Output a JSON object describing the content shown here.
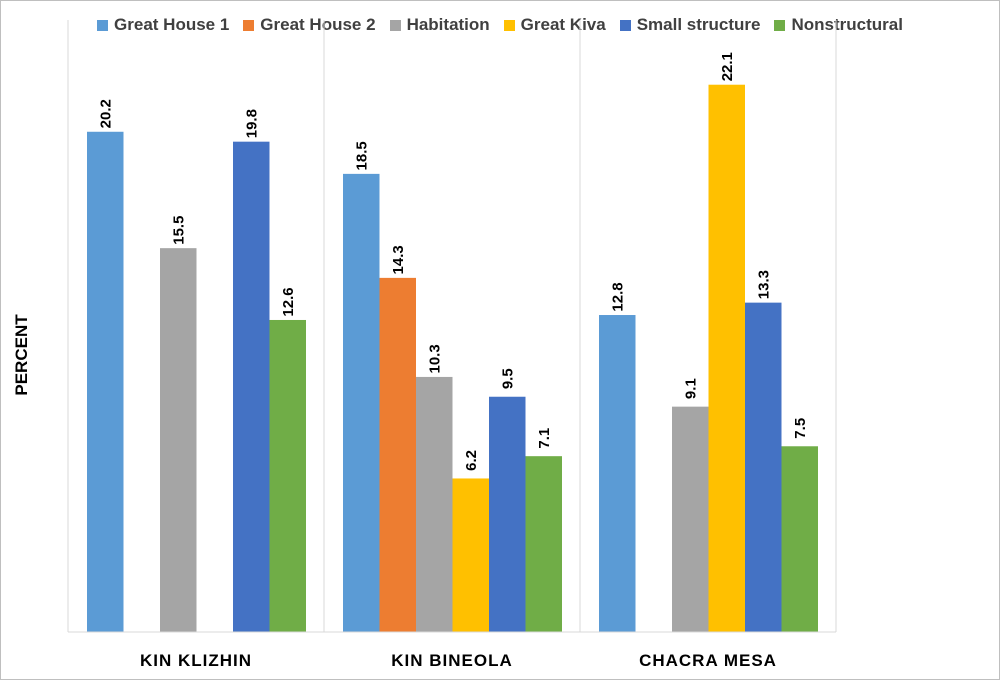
{
  "chart_data": {
    "type": "bar",
    "ylabel": "PERCENT",
    "xlabel": "",
    "categories": [
      "KIN KLIZHIN",
      "KIN BINEOLA",
      "CHACRA MESA"
    ],
    "ylim": [
      0,
      23.3
    ],
    "grid": false,
    "legend_position": "top",
    "series": [
      {
        "name": "Great House 1",
        "color": "#5B9BD5",
        "values": [
          20.2,
          18.5,
          12.8
        ]
      },
      {
        "name": "Great House 2",
        "color": "#ED7D31",
        "values": [
          null,
          14.3,
          null
        ]
      },
      {
        "name": "Habitation",
        "color": "#A5A5A5",
        "values": [
          15.5,
          10.3,
          9.1
        ]
      },
      {
        "name": "Great Kiva",
        "color": "#FFC000",
        "values": [
          null,
          6.2,
          22.1
        ]
      },
      {
        "name": "Small structure",
        "color": "#4472C4",
        "values": [
          19.8,
          9.5,
          13.3
        ]
      },
      {
        "name": "Nonstructural",
        "color": "#70AD47",
        "values": [
          12.6,
          7.1,
          7.5
        ]
      }
    ]
  }
}
